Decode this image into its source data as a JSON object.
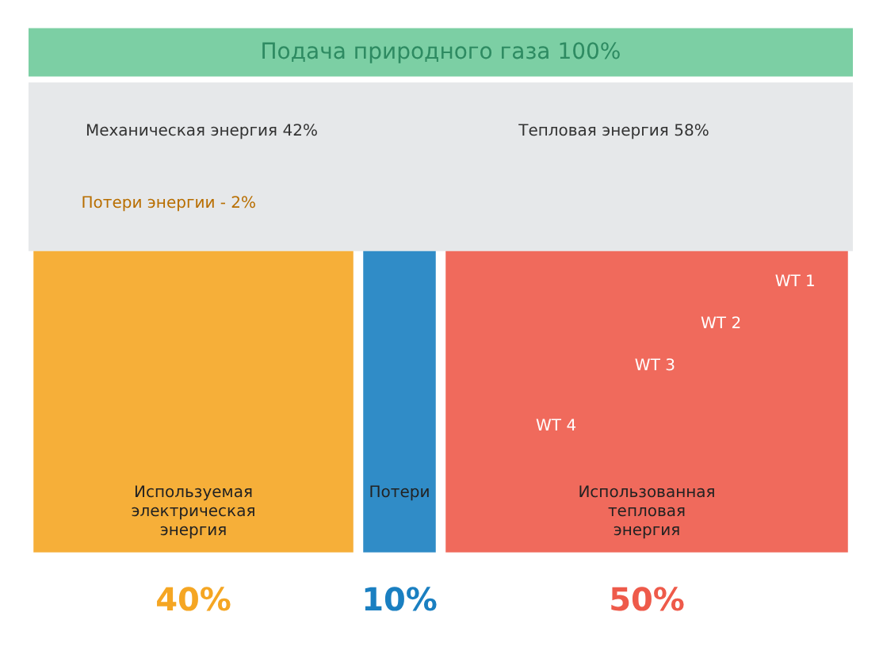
{
  "chart_data": {
    "type": "other",
    "title": "Подача природного газа 100%",
    "categories": [
      "Используемая электрическая энергия",
      "Потери",
      "Использованная тепловая энергия"
    ],
    "values": [
      40,
      10,
      50
    ],
    "value_labels": [
      "40%",
      "10%",
      "50%"
    ],
    "colors": [
      "#f5a623",
      "#1a7fc1",
      "#ee5a4a"
    ],
    "annotations": [
      "Механическая энергия 42%",
      "Тепловая энергия 58%",
      "Потери энергии - 2%",
      "WT 1",
      "WT 2",
      "WT 3",
      "WT 4"
    ]
  }
}
